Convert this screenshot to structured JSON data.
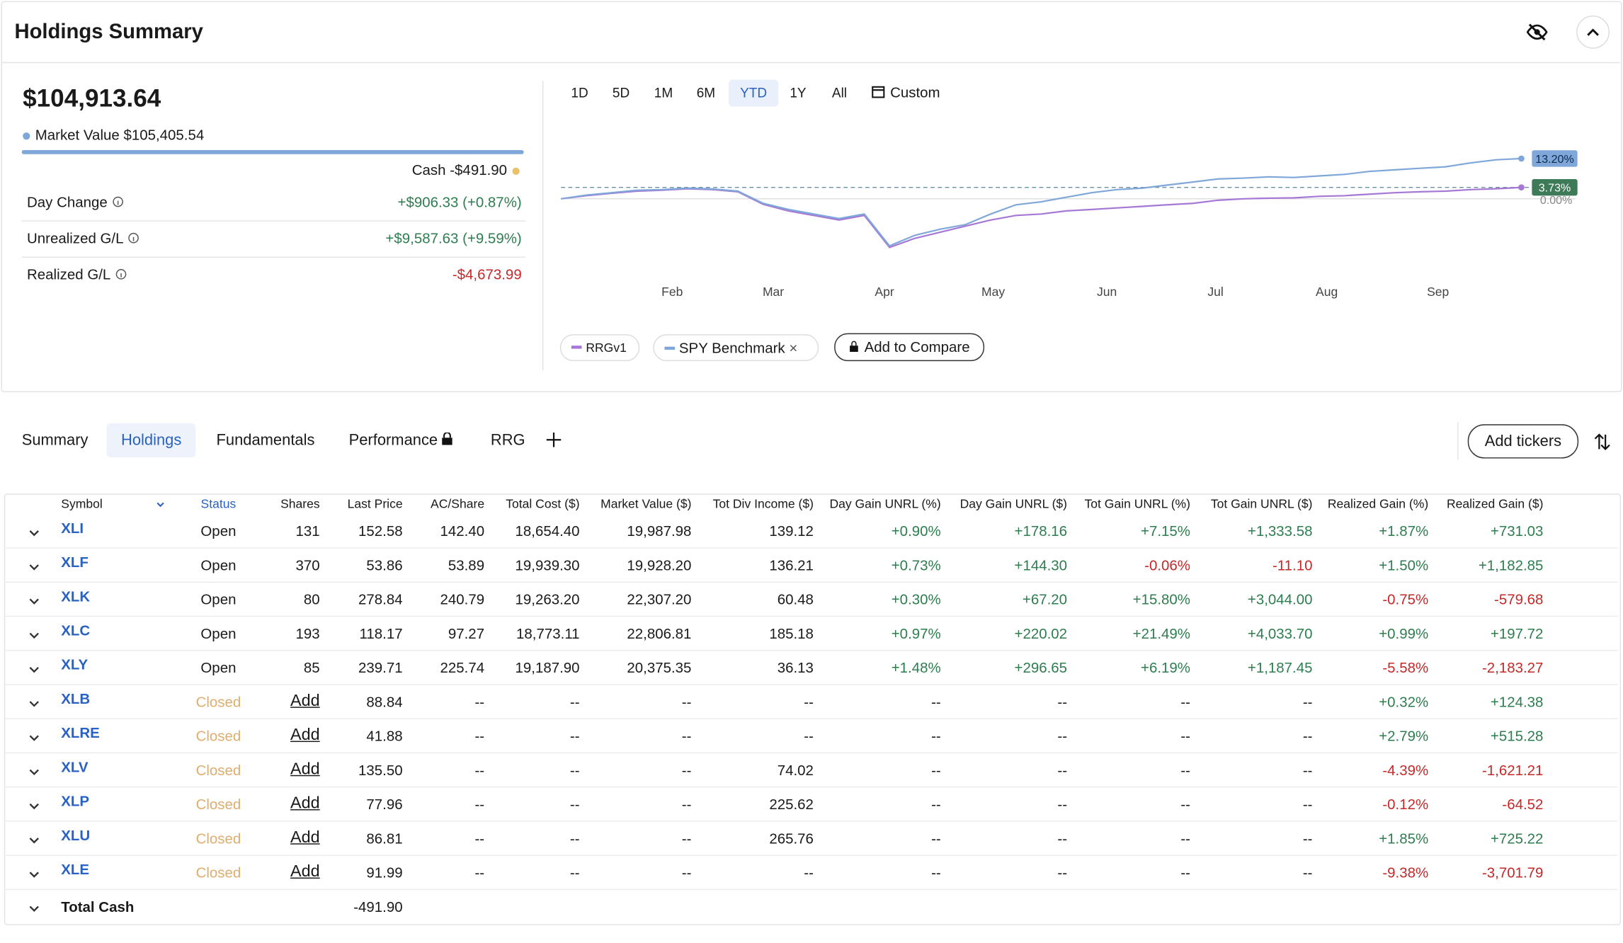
{
  "header": {
    "title": "Holdings Summary"
  },
  "summary": {
    "total": "$104,913.64",
    "market_value_label": "Market Value",
    "market_value": "$105,405.54",
    "cash_label": "Cash",
    "cash": "-$491.90",
    "rows": [
      {
        "label": "Day Change",
        "value": "+$906.33 (+0.87%)"
      },
      {
        "label": "Unrealized G/L",
        "value": "+$9,587.63 (+9.59%)"
      },
      {
        "label": "Realized G/L",
        "value": "-$4,673.99"
      }
    ]
  },
  "chart": {
    "type": "line",
    "ranges": [
      "1D",
      "5D",
      "1M",
      "6M",
      "YTD",
      "1Y",
      "All"
    ],
    "active_range": 4,
    "custom": "Custom",
    "xlim": [
      0,
      38.5
    ],
    "ylim": [
      -18,
      16
    ],
    "xticks": [
      {
        "value": 4.4,
        "label": "Feb"
      },
      {
        "value": 8.4,
        "label": "Mar"
      },
      {
        "value": 12.8,
        "label": "Apr"
      },
      {
        "value": 17.1,
        "label": "May"
      },
      {
        "value": 21.6,
        "label": "Jun"
      },
      {
        "value": 25.9,
        "label": "Jul"
      },
      {
        "value": 30.3,
        "label": "Aug"
      },
      {
        "value": 34.7,
        "label": "Sep"
      }
    ],
    "zero_label": {
      "value": 0,
      "label": "0.00%"
    },
    "series": [
      {
        "name": "RRGv1",
        "color": "#a678d6",
        "label_color": "#3d7a58",
        "end_label": "3.73%",
        "values": [
          0,
          1.0,
          1.8,
          2.5,
          2.8,
          3.3,
          3.0,
          2.3,
          -1.8,
          -4,
          -5.5,
          -7,
          -5.5,
          -16,
          -13,
          -11,
          -9,
          -7,
          -5.5,
          -5,
          -4,
          -3.5,
          -3,
          -2.5,
          -2,
          -1.5,
          -0.5,
          0,
          0.2,
          0.3,
          0.8,
          1.0,
          1.5,
          2.0,
          2.3,
          2.5,
          3.0,
          3.3,
          3.73
        ]
      },
      {
        "name": "SPY Benchmark",
        "color": "#7fa7d9",
        "label_color": "#7fa7d9",
        "end_label": "13.20%",
        "values": [
          0,
          1.2,
          2.0,
          2.8,
          3.0,
          3.5,
          3.2,
          2.5,
          -1.5,
          -3.5,
          -5.0,
          -6.5,
          -5.0,
          -15.5,
          -12.0,
          -10.0,
          -8.5,
          -5.0,
          -2.0,
          -1.0,
          0.5,
          2.0,
          3.0,
          3.5,
          4.5,
          5.5,
          6.5,
          6.8,
          7.2,
          7.0,
          7.5,
          8.0,
          9.0,
          9.5,
          10.0,
          10.5,
          11.8,
          12.8,
          13.2
        ]
      }
    ],
    "add_compare": "Add to Compare"
  },
  "tabs": {
    "items": [
      "Summary",
      "Holdings",
      "Fundamentals",
      "Performance",
      "RRG"
    ],
    "active": 1,
    "add_tickers": "Add tickers"
  },
  "table": {
    "columns": [
      "Symbol",
      "Status",
      "Shares",
      "Last Price",
      "AC/Share",
      "Total Cost ($)",
      "Market Value ($)",
      "Tot Div Income ($)",
      "Day Gain UNRL (%)",
      "Day Gain UNRL ($)",
      "Tot Gain UNRL (%)",
      "Tot Gain UNRL ($)",
      "Realized Gain (%)",
      "Realized Gain ($)"
    ],
    "rows": [
      [
        "XLI",
        "Open",
        "131",
        "152.58",
        "142.40",
        "18,654.40",
        "19,987.98",
        "139.12",
        "+0.90%",
        "+178.16",
        "+7.15%",
        "+1,333.58",
        "+1.87%",
        "+731.03"
      ],
      [
        "XLF",
        "Open",
        "370",
        "53.86",
        "53.89",
        "19,939.30",
        "19,928.20",
        "136.21",
        "+0.73%",
        "+144.30",
        "-0.06%",
        "-11.10",
        "+1.50%",
        "+1,182.85"
      ],
      [
        "XLK",
        "Open",
        "80",
        "278.84",
        "240.79",
        "19,263.20",
        "22,307.20",
        "60.48",
        "+0.30%",
        "+67.20",
        "+15.80%",
        "+3,044.00",
        "-0.75%",
        "-579.68"
      ],
      [
        "XLC",
        "Open",
        "193",
        "118.17",
        "97.27",
        "18,773.11",
        "22,806.81",
        "185.18",
        "+0.97%",
        "+220.02",
        "+21.49%",
        "+4,033.70",
        "+0.99%",
        "+197.72"
      ],
      [
        "XLY",
        "Open",
        "85",
        "239.71",
        "225.74",
        "19,187.90",
        "20,375.35",
        "36.13",
        "+1.48%",
        "+296.65",
        "+6.19%",
        "+1,187.45",
        "-5.58%",
        "-2,183.27"
      ],
      [
        "XLB",
        "Closed",
        "Add",
        "88.84",
        "--",
        "--",
        "--",
        "--",
        "--",
        "--",
        "--",
        "--",
        "+0.32%",
        "+124.38"
      ],
      [
        "XLRE",
        "Closed",
        "Add",
        "41.88",
        "--",
        "--",
        "--",
        "--",
        "--",
        "--",
        "--",
        "--",
        "+2.79%",
        "+515.28"
      ],
      [
        "XLV",
        "Closed",
        "Add",
        "135.50",
        "--",
        "--",
        "--",
        "74.02",
        "--",
        "--",
        "--",
        "--",
        "-4.39%",
        "-1,621.21"
      ],
      [
        "XLP",
        "Closed",
        "Add",
        "77.96",
        "--",
        "--",
        "--",
        "225.62",
        "--",
        "--",
        "--",
        "--",
        "-0.12%",
        "-64.52"
      ],
      [
        "XLU",
        "Closed",
        "Add",
        "86.81",
        "--",
        "--",
        "--",
        "265.76",
        "--",
        "--",
        "--",
        "--",
        "+1.85%",
        "+725.22"
      ],
      [
        "XLE",
        "Closed",
        "Add",
        "91.99",
        "--",
        "--",
        "--",
        "--",
        "--",
        "--",
        "--",
        "--",
        "-9.38%",
        "-3,701.79"
      ]
    ],
    "total": {
      "label": "Total Cash",
      "value": "-491.90"
    }
  }
}
